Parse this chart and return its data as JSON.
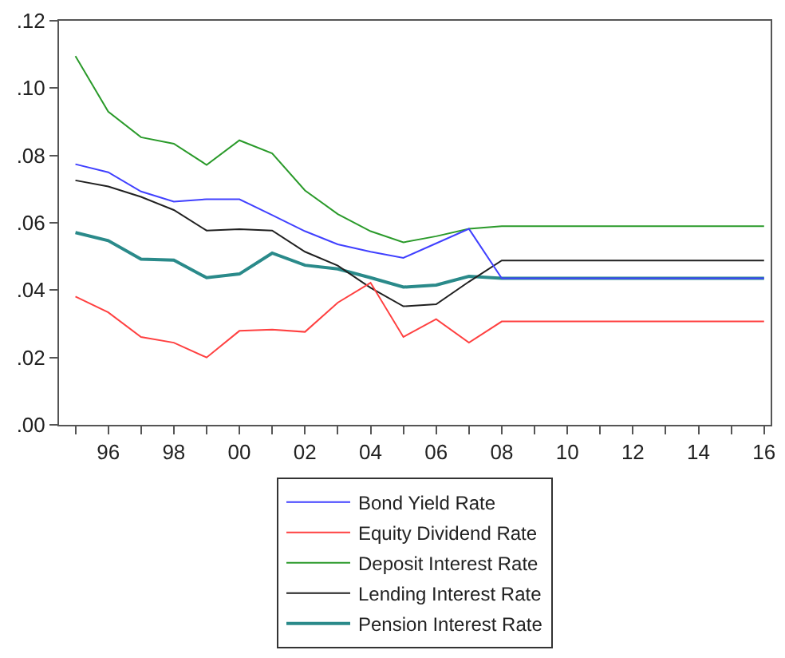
{
  "chart_data": {
    "type": "line",
    "x": [
      1995,
      1996,
      1997,
      1998,
      1999,
      2000,
      2001,
      2002,
      2003,
      2004,
      2005,
      2006,
      2007,
      2008,
      2009,
      2010,
      2011,
      2012,
      2013,
      2014,
      2015,
      2016
    ],
    "series": [
      {
        "name": "Bond Yield Rate",
        "color": "#4040ff",
        "values": [
          0.0774,
          0.075,
          0.0693,
          0.0663,
          0.067,
          0.067,
          0.0623,
          0.0575,
          0.0536,
          0.0514,
          0.0496,
          0.0539,
          0.0582,
          0.0435,
          0.0435,
          0.0435,
          0.0435,
          0.0435,
          0.0435,
          0.0435,
          0.0435,
          0.0435
        ]
      },
      {
        "name": "Equity Dividend Rate",
        "color": "#ff4040",
        "values": [
          0.0381,
          0.0334,
          0.0261,
          0.0244,
          0.02,
          0.0279,
          0.0283,
          0.0276,
          0.0363,
          0.0422,
          0.0261,
          0.0314,
          0.0244,
          0.0307,
          0.0307,
          0.0307,
          0.0307,
          0.0307,
          0.0307,
          0.0307,
          0.0307,
          0.0307
        ]
      },
      {
        "name": "Deposit Interest Rate",
        "color": "#2a9a2a",
        "values": [
          0.1095,
          0.093,
          0.0854,
          0.0835,
          0.0772,
          0.0845,
          0.0806,
          0.0696,
          0.0626,
          0.0575,
          0.0542,
          0.056,
          0.0582,
          0.059,
          0.059,
          0.059,
          0.059,
          0.059,
          0.059,
          0.059,
          0.059,
          0.059
        ]
      },
      {
        "name": "Lending Interest Rate",
        "color": "#202020",
        "values": [
          0.0726,
          0.0708,
          0.0677,
          0.0638,
          0.0577,
          0.0581,
          0.0577,
          0.0514,
          0.0473,
          0.0407,
          0.0352,
          0.0358,
          0.0425,
          0.0488,
          0.0488,
          0.0488,
          0.0488,
          0.0488,
          0.0488,
          0.0488,
          0.0488,
          0.0488
        ]
      },
      {
        "name": "Pension Interest Rate",
        "color": "#2a8a8a",
        "values": [
          0.0571,
          0.0547,
          0.0492,
          0.0489,
          0.0437,
          0.0448,
          0.051,
          0.0474,
          0.0463,
          0.0437,
          0.0409,
          0.0415,
          0.0441,
          0.0435,
          0.0435,
          0.0435,
          0.0435,
          0.0435,
          0.0435,
          0.0435,
          0.0435,
          0.0435
        ]
      }
    ],
    "xlim": [
      1994.5,
      2016.2
    ],
    "xticks": [
      {
        "value": 1995,
        "label": null
      },
      {
        "value": 1996,
        "label": "96"
      },
      {
        "value": 1997,
        "label": null
      },
      {
        "value": 1998,
        "label": "98"
      },
      {
        "value": 1999,
        "label": null
      },
      {
        "value": 2000,
        "label": "00"
      },
      {
        "value": 2001,
        "label": null
      },
      {
        "value": 2002,
        "label": "02"
      },
      {
        "value": 2003,
        "label": null
      },
      {
        "value": 2004,
        "label": "04"
      },
      {
        "value": 2005,
        "label": null
      },
      {
        "value": 2006,
        "label": "06"
      },
      {
        "value": 2007,
        "label": null
      },
      {
        "value": 2008,
        "label": "08"
      },
      {
        "value": 2009,
        "label": null
      },
      {
        "value": 2010,
        "label": "10"
      },
      {
        "value": 2011,
        "label": null
      },
      {
        "value": 2012,
        "label": "12"
      },
      {
        "value": 2013,
        "label": null
      },
      {
        "value": 2014,
        "label": "14"
      },
      {
        "value": 2015,
        "label": null
      },
      {
        "value": 2016,
        "label": "16"
      }
    ],
    "ylim": [
      0,
      0.12
    ],
    "yticks": [
      {
        "value": 0,
        "label": ".00"
      },
      {
        "value": 0.02,
        "label": ".02"
      },
      {
        "value": 0.04,
        "label": ".04"
      },
      {
        "value": 0.06,
        "label": ".06"
      },
      {
        "value": 0.08,
        "label": ".08"
      },
      {
        "value": 0.1,
        "label": ".10"
      },
      {
        "value": 0.12,
        "label": ".12"
      }
    ],
    "legend": "bottom",
    "marker": "none",
    "line_style": "solid"
  }
}
